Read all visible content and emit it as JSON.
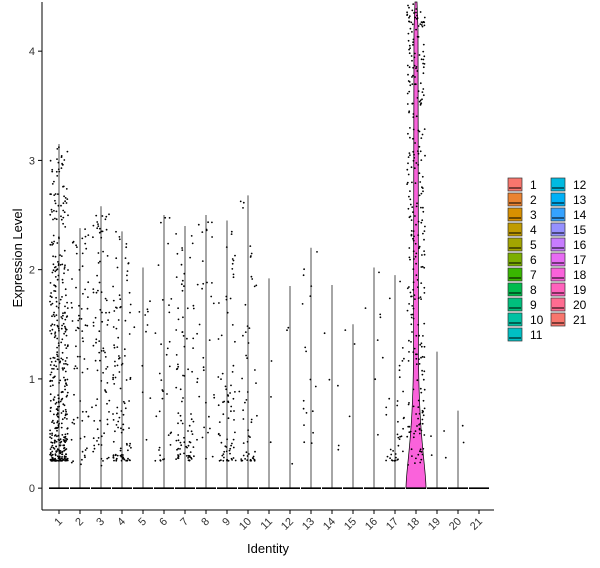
{
  "chart_data": {
    "type": "violin",
    "xlabel": "Identity",
    "ylabel": "Expression Level",
    "ylim": [
      -0.2,
      4.45
    ],
    "yticks": [
      0,
      1,
      2,
      3,
      4
    ],
    "grid": false,
    "legend_position": "right",
    "categories": [
      "1",
      "2",
      "3",
      "4",
      "5",
      "6",
      "7",
      "8",
      "9",
      "10",
      "11",
      "12",
      "13",
      "14",
      "15",
      "16",
      "17",
      "18",
      "19",
      "20",
      "21"
    ],
    "colors": [
      "#F8766D",
      "#EA8331",
      "#D89000",
      "#C09B00",
      "#A3A500",
      "#7CAE00",
      "#39B600",
      "#00BB4E",
      "#00BF7D",
      "#00C1A3",
      "#00BFC4",
      "#00BAE0",
      "#00B0F6",
      "#35A2FF",
      "#9590FF",
      "#C77CFF",
      "#E76BF3",
      "#FA62DB",
      "#FF62BC",
      "#FF6C91",
      "#F8766D"
    ],
    "series": [
      {
        "name": "1",
        "max": 3.15,
        "n_points": 420,
        "spread": 0.85
      },
      {
        "name": "2",
        "max": 2.38,
        "n_points": 70,
        "spread": 2.0
      },
      {
        "name": "3",
        "max": 2.58,
        "n_points": 90,
        "spread": 2.0
      },
      {
        "name": "4",
        "max": 2.35,
        "n_points": 110,
        "spread": 0.7
      },
      {
        "name": "5",
        "max": 2.02,
        "n_points": 12,
        "spread": 2.0
      },
      {
        "name": "6",
        "max": 2.5,
        "n_points": 35,
        "spread": 1.5
      },
      {
        "name": "7",
        "max": 2.4,
        "n_points": 90,
        "spread": 1.0
      },
      {
        "name": "8",
        "max": 2.5,
        "n_points": 35,
        "spread": 2.0
      },
      {
        "name": "9",
        "max": 2.45,
        "n_points": 75,
        "spread": 1.0
      },
      {
        "name": "10",
        "max": 2.68,
        "n_points": 55,
        "spread": 1.0
      },
      {
        "name": "11",
        "max": 1.92,
        "n_points": 3,
        "spread": 2.0
      },
      {
        "name": "12",
        "max": 1.85,
        "n_points": 3,
        "spread": 2.0
      },
      {
        "name": "13",
        "max": 2.2,
        "n_points": 18,
        "spread": 2.0
      },
      {
        "name": "14",
        "max": 1.86,
        "n_points": 5,
        "spread": 2.0
      },
      {
        "name": "15",
        "max": 1.5,
        "n_points": 3,
        "spread": 2.0
      },
      {
        "name": "16",
        "max": 2.02,
        "n_points": 8,
        "spread": 2.0
      },
      {
        "name": "17",
        "max": 1.95,
        "n_points": 40,
        "spread": 0.6
      },
      {
        "name": "18",
        "max": 4.45,
        "n_points": 300,
        "spread": 4.0
      },
      {
        "name": "19",
        "max": 1.25,
        "n_points": 4,
        "spread": 1.2
      },
      {
        "name": "20",
        "max": 0.71,
        "n_points": 2,
        "spread": 0.7
      },
      {
        "name": "21",
        "max": 0.0,
        "n_points": 0,
        "spread": 0
      }
    ]
  }
}
